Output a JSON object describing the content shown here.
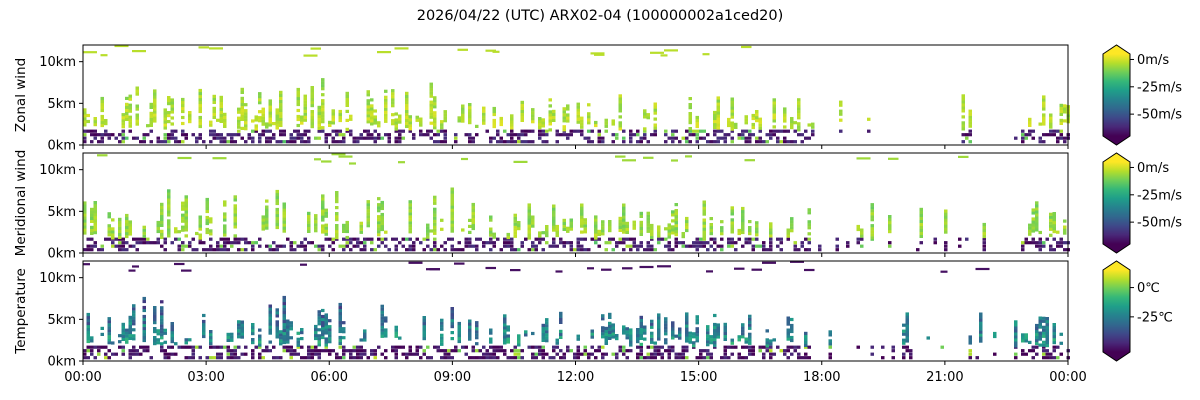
{
  "title": "2026/04/22 (UTC) ARX02-04 (100000002a1ced20)",
  "colormap": [
    "#440154",
    "#482878",
    "#3e4989",
    "#31688e",
    "#26828e",
    "#1f9e89",
    "#35b779",
    "#6ece58",
    "#b5de2b",
    "#fde725"
  ],
  "x_ticks": [
    "00:00",
    "03:00",
    "06:00",
    "09:00",
    "12:00",
    "15:00",
    "18:00",
    "21:00",
    "00:00"
  ],
  "chart_data": [
    {
      "type": "heatmap",
      "ylabel": "Zonal wind",
      "x_range_hours": [
        0,
        24
      ],
      "y_range_km": [
        0,
        12
      ],
      "y_ticks": [
        {
          "value": 0,
          "label": "0km"
        },
        {
          "value": 5,
          "label": "5km"
        },
        {
          "value": 10,
          "label": "10km"
        }
      ],
      "colorbar": {
        "range": [
          -70,
          5
        ],
        "extend": "both",
        "ticks": [
          {
            "value": 0,
            "label": "0m/s"
          },
          {
            "value": -25,
            "label": "-25m/s"
          },
          {
            "value": -50,
            "label": "-50m/s"
          }
        ]
      },
      "field": {
        "upper_value": -3,
        "upper_spread": 5,
        "lower_value": -65,
        "seed": 11
      }
    },
    {
      "type": "heatmap",
      "ylabel": "Meridional wind",
      "x_range_hours": [
        0,
        24
      ],
      "y_range_km": [
        0,
        12
      ],
      "y_ticks": [
        {
          "value": 0,
          "label": "0km"
        },
        {
          "value": 5,
          "label": "5km"
        },
        {
          "value": 10,
          "label": "10km"
        }
      ],
      "colorbar": {
        "range": [
          -70,
          5
        ],
        "extend": "both",
        "ticks": [
          {
            "value": 0,
            "label": "0m/s"
          },
          {
            "value": -25,
            "label": "-25m/s"
          },
          {
            "value": -50,
            "label": "-50m/s"
          }
        ]
      },
      "field": {
        "upper_value": -6,
        "upper_spread": 5,
        "lower_value": -65,
        "seed": 23
      }
    },
    {
      "type": "heatmap",
      "ylabel": "Temperature",
      "x_range_hours": [
        0,
        24
      ],
      "y_range_km": [
        0,
        12
      ],
      "y_ticks": [
        {
          "value": 0,
          "label": "0km"
        },
        {
          "value": 5,
          "label": "5km"
        },
        {
          "value": 10,
          "label": "10km"
        }
      ],
      "colorbar": {
        "range": [
          -55,
          15
        ],
        "extend": "both",
        "ticks": [
          {
            "value": 0,
            "label": "0℃"
          },
          {
            "value": -25,
            "label": "-25℃"
          }
        ]
      },
      "field": {
        "upper_value": -20,
        "upper_spread": 12,
        "lower_value": -52,
        "seed": 37
      }
    }
  ]
}
